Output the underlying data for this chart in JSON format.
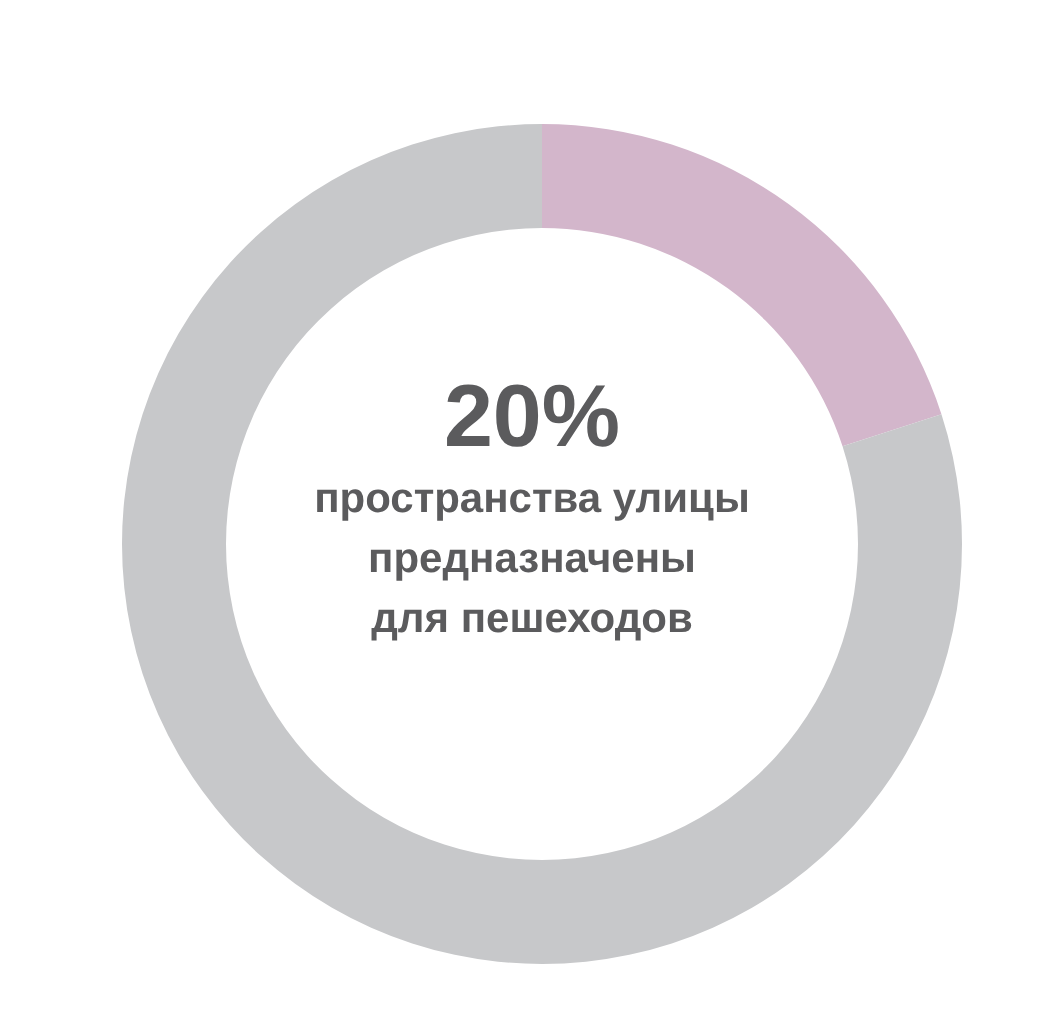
{
  "chart_data": {
    "type": "donut",
    "categories": [
      null,
      null
    ],
    "values": [
      20,
      80
    ],
    "colors": [
      "#d3b6cb",
      "#c7c8ca"
    ],
    "annotations": [
      "20%",
      "пространства улицы\nпредназначены\nдля пешеходов"
    ]
  }
}
